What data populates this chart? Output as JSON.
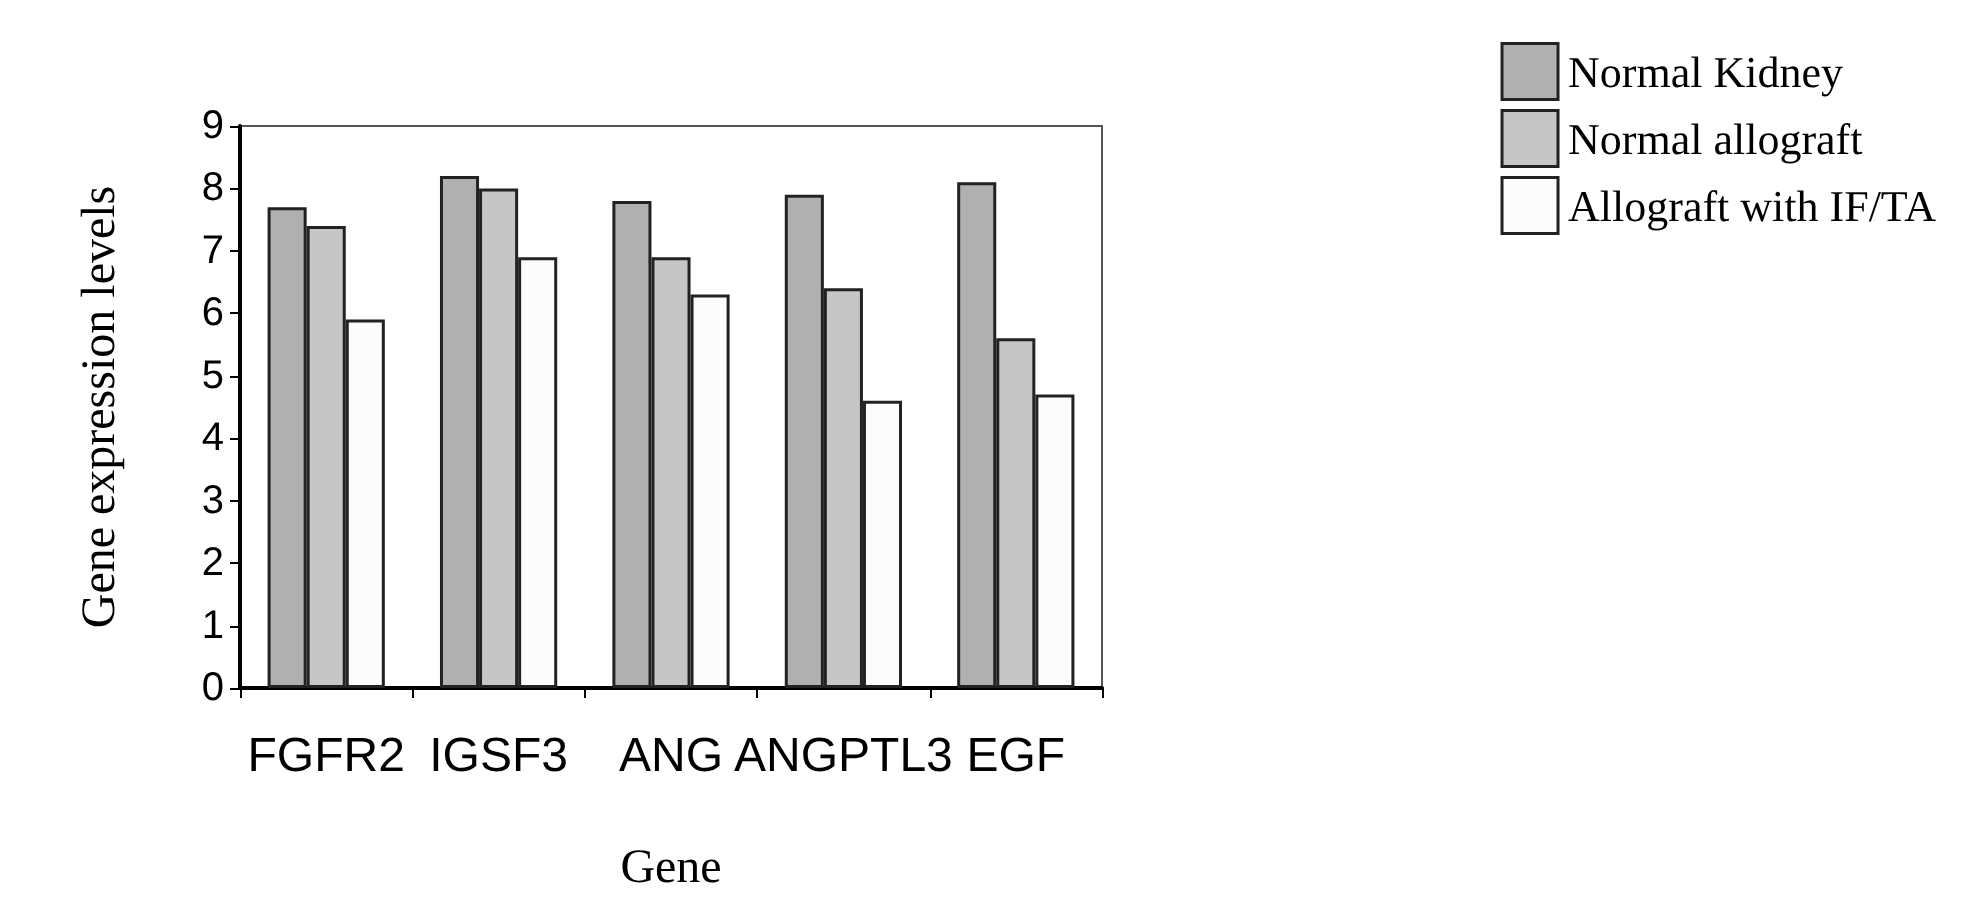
{
  "chart_data": {
    "type": "bar",
    "xlabel": "Gene",
    "ylabel": "Gene expression levels",
    "categories": [
      "FGFR2",
      "IGSF3",
      "ANG",
      "ANGPTL3",
      "EGF"
    ],
    "series": [
      {
        "name": "Normal Kidney",
        "color": "#b0b0b0",
        "values": [
          7.7,
          8.2,
          7.8,
          7.9,
          8.1
        ]
      },
      {
        "name": "Normal allograft",
        "color": "#c6c6c6",
        "values": [
          7.4,
          8.0,
          6.9,
          6.4,
          5.6
        ]
      },
      {
        "name": "Allograft with IF/TA",
        "color": "#fcfcfc",
        "values": [
          5.9,
          6.9,
          6.3,
          4.6,
          4.7
        ]
      }
    ],
    "ylim": [
      0,
      9
    ],
    "yticks": [
      0,
      1,
      2,
      3,
      4,
      5,
      6,
      7,
      8,
      9
    ],
    "grid": false,
    "legend": "top right"
  }
}
